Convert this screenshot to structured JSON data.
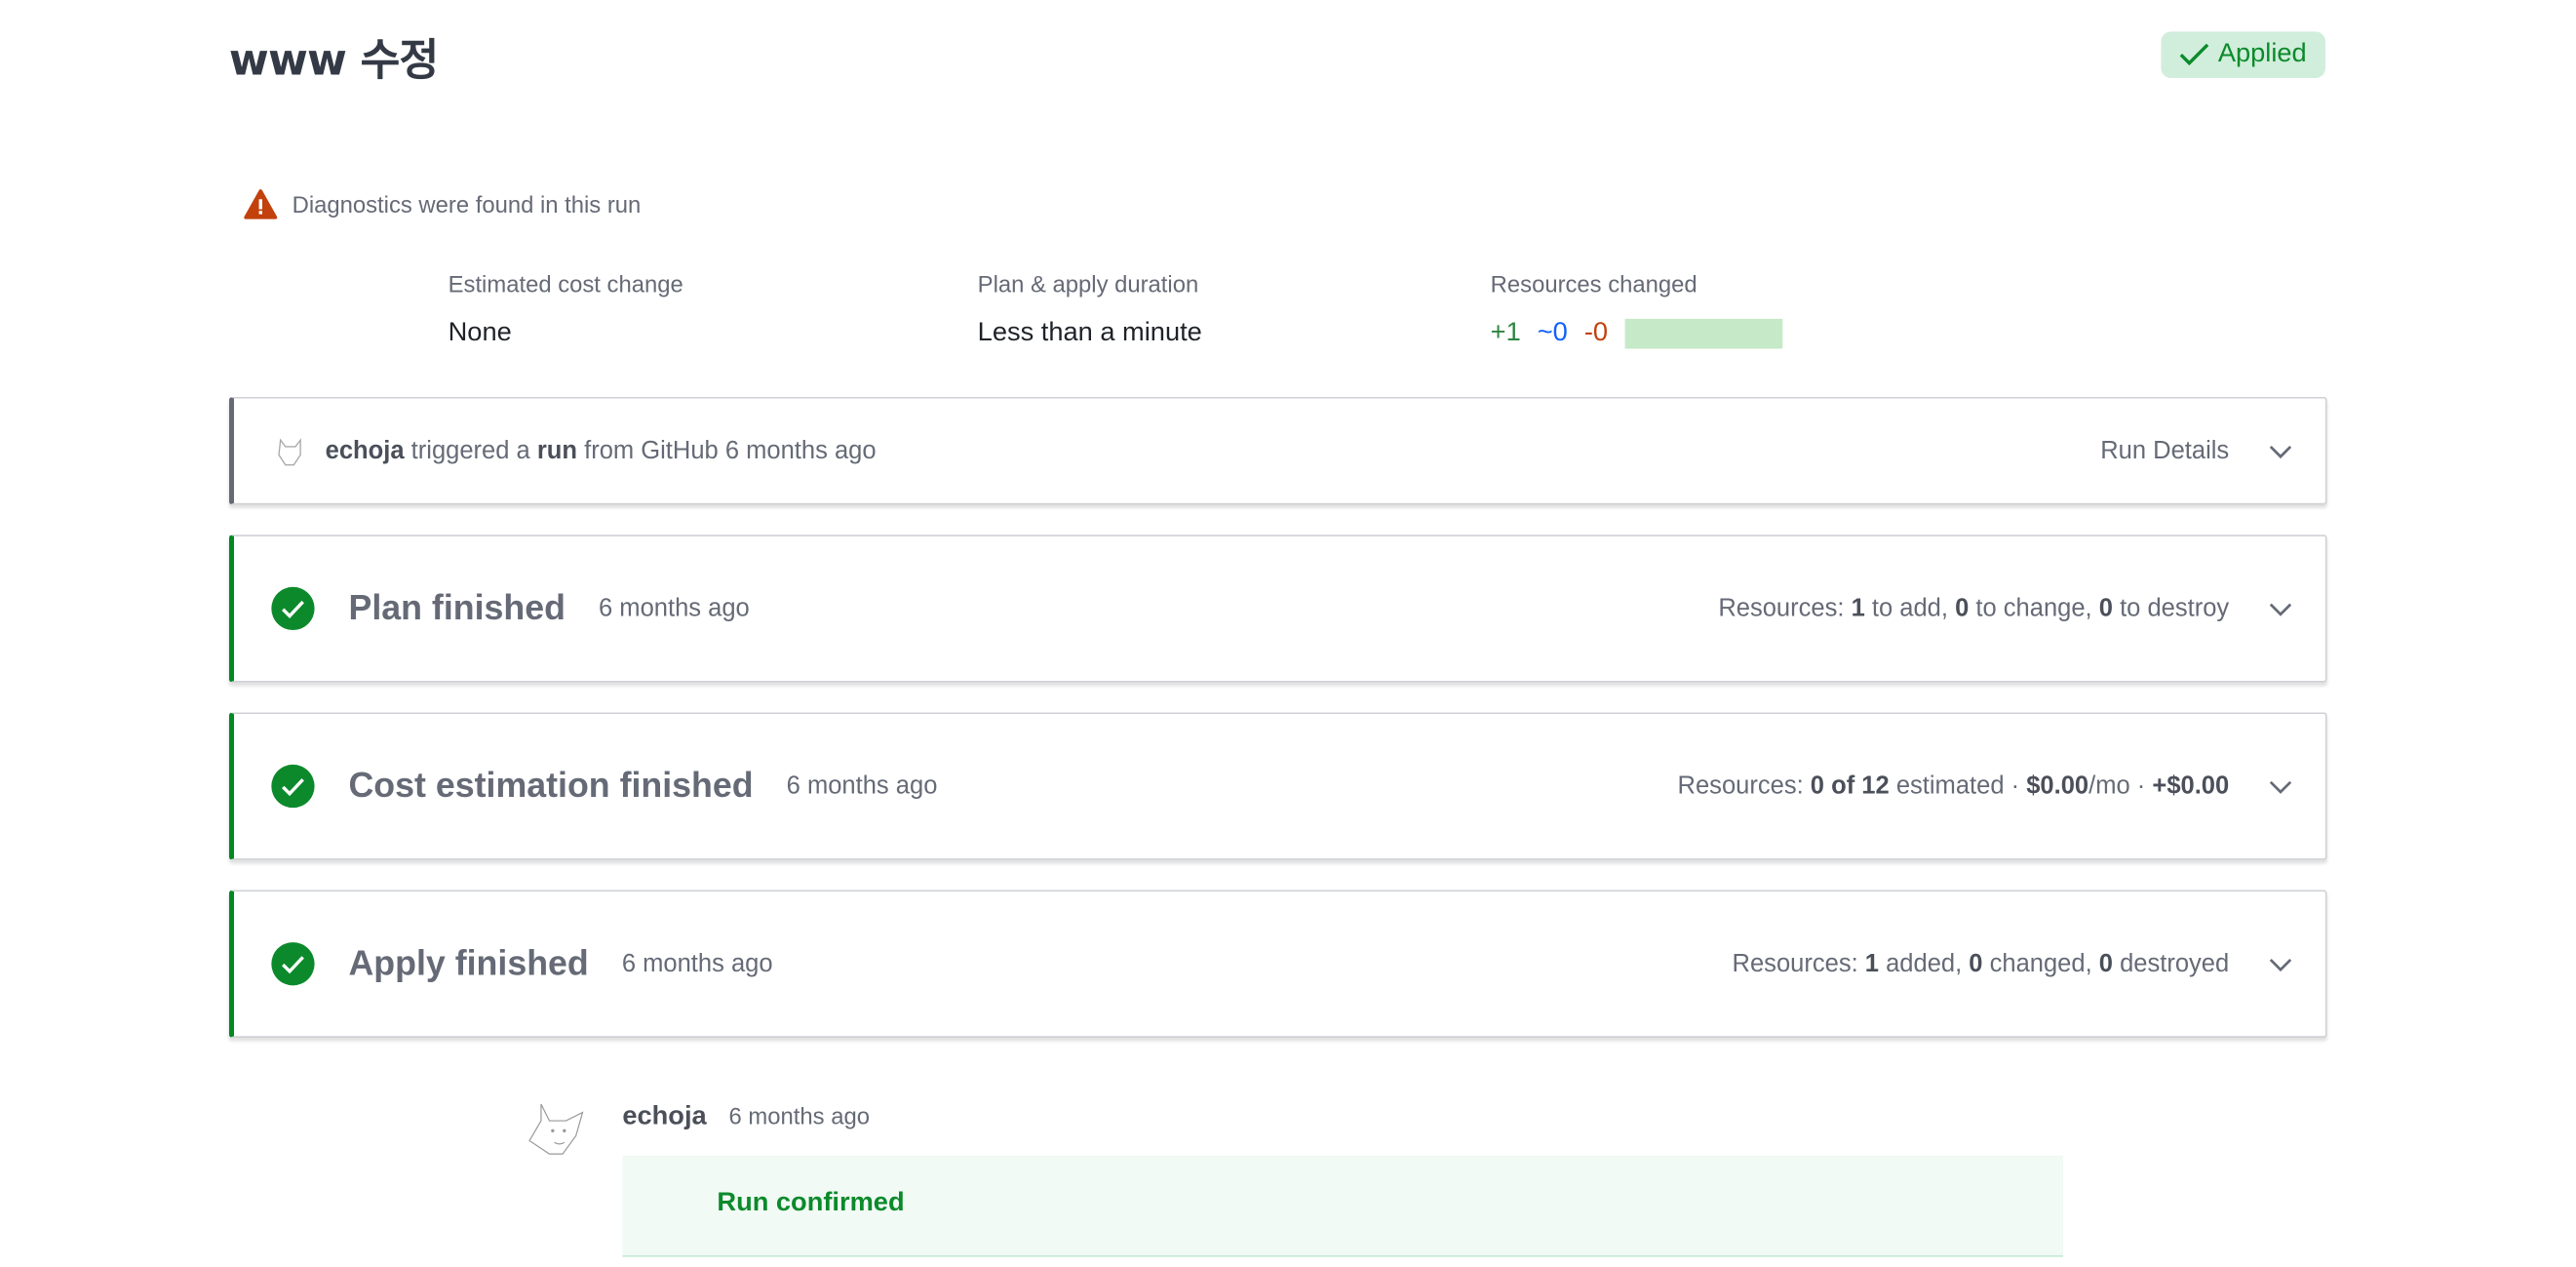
{
  "header": {
    "title": "www 수정",
    "status_badge": "Applied"
  },
  "colors": {
    "success": "#0c8a2b",
    "badge_bg": "#d0eedb",
    "add": "#2e8540",
    "change": "#1060ff",
    "destroy": "#c2410c",
    "warning": "#c2410c"
  },
  "diagnostics": {
    "icon": "warning-triangle-icon",
    "text": "Diagnostics were found in this run"
  },
  "stats": {
    "cost": {
      "label": "Estimated cost change",
      "value": "None"
    },
    "duration": {
      "label": "Plan & apply duration",
      "value": "Less than a minute"
    },
    "resources": {
      "label": "Resources changed",
      "added": "+1",
      "changed": "~0",
      "destroyed": "-0",
      "added_fraction": 1.0
    }
  },
  "trigger": {
    "user": "echoja",
    "text1": "triggered a",
    "run": "run",
    "text2": "from GitHub 6 months ago",
    "details": "Run Details"
  },
  "steps": [
    {
      "title": "Plan finished",
      "time": "6 months ago",
      "summary": [
        "Resources: ",
        "1",
        " to add, ",
        "0",
        " to change, ",
        "0",
        " to destroy"
      ]
    },
    {
      "title": "Cost estimation finished",
      "time": "6 months ago",
      "summary": [
        "Resources: ",
        "0 of 12",
        " estimated · ",
        "$0.00",
        "/mo · ",
        "+$0.00",
        ""
      ]
    },
    {
      "title": "Apply finished",
      "time": "6 months ago",
      "summary": [
        "Resources: ",
        "1",
        " added, ",
        "0",
        " changed, ",
        "0",
        " destroyed"
      ]
    }
  ],
  "comment": {
    "user": "echoja",
    "time": "6 months ago",
    "message": "Run confirmed"
  }
}
